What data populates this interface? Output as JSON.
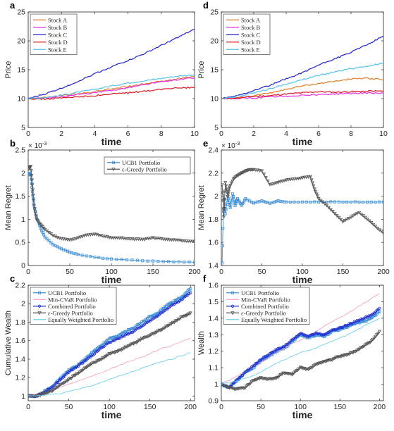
{
  "colors": {
    "stock_a": "#e07b28",
    "stock_b": "#e62ee6",
    "stock_c": "#1f1fd1",
    "stock_d": "#d9141e",
    "stock_e": "#55c3e8",
    "ucb1": "#3d8fd6",
    "egreedy": "#555555",
    "mincvar": "#f5a3c7",
    "combined": "#1f2fcf",
    "equal": "#6ecff2"
  },
  "chart_data": [
    {
      "panel": "a",
      "type": "line",
      "title": "",
      "xlabel": "time",
      "ylabel": "Price",
      "xlim": [
        0,
        10
      ],
      "ylim": [
        5,
        25
      ],
      "xticks": [
        "0",
        "2",
        "4",
        "6",
        "8",
        "10"
      ],
      "yticks": [
        "5",
        "10",
        "15",
        "20",
        "25"
      ],
      "legend": "top-left",
      "series": [
        {
          "name": "Stock A",
          "color_key": "stock_a",
          "x": [
            0,
            1,
            2,
            3,
            4,
            5,
            6,
            7,
            8,
            9,
            10
          ],
          "y": [
            10,
            10.2,
            10.5,
            10.8,
            11.2,
            11.7,
            12.1,
            12.6,
            13.0,
            13.4,
            13.9
          ]
        },
        {
          "name": "Stock B",
          "color_key": "stock_b",
          "x": [
            0,
            1,
            2,
            3,
            4,
            5,
            6,
            7,
            8,
            9,
            10
          ],
          "y": [
            10,
            10.1,
            10.4,
            10.7,
            11.0,
            11.4,
            11.9,
            12.4,
            12.9,
            13.3,
            13.6
          ]
        },
        {
          "name": "Stock C",
          "color_key": "stock_c",
          "x": [
            0,
            1,
            2,
            3,
            4,
            5,
            6,
            7,
            8,
            9,
            10
          ],
          "y": [
            10,
            10.8,
            11.8,
            13.0,
            14.3,
            15.5,
            16.6,
            17.8,
            19.2,
            20.6,
            22.0
          ]
        },
        {
          "name": "Stock D",
          "color_key": "stock_d",
          "x": [
            0,
            1,
            2,
            3,
            4,
            5,
            6,
            7,
            8,
            9,
            10
          ],
          "y": [
            10,
            9.9,
            10.1,
            10.3,
            10.5,
            10.8,
            11.0,
            11.3,
            11.6,
            11.9,
            11.9
          ]
        },
        {
          "name": "Stock E",
          "color_key": "stock_e",
          "x": [
            0,
            1,
            2,
            3,
            4,
            5,
            6,
            7,
            8,
            9,
            10
          ],
          "y": [
            10,
            10.2,
            10.6,
            11.1,
            11.6,
            12.2,
            12.7,
            13.1,
            13.5,
            13.9,
            14.1
          ]
        }
      ]
    },
    {
      "panel": "d",
      "type": "line",
      "title": "",
      "xlabel": "time",
      "ylabel": "Price",
      "xlim": [
        0,
        10
      ],
      "ylim": [
        5,
        25
      ],
      "xticks": [
        "0",
        "2",
        "4",
        "6",
        "8",
        "10"
      ],
      "yticks": [
        "5",
        "10",
        "15",
        "20",
        "25"
      ],
      "legend": "top-left",
      "series": [
        {
          "name": "Stock A",
          "color_key": "stock_a",
          "x": [
            0,
            1,
            2,
            3,
            4,
            5,
            6,
            7,
            8,
            9,
            10
          ],
          "y": [
            10,
            10.1,
            10.5,
            11.0,
            11.6,
            12.2,
            12.6,
            13.0,
            13.4,
            13.5,
            13.3
          ]
        },
        {
          "name": "Stock B",
          "color_key": "stock_b",
          "x": [
            0,
            1,
            2,
            3,
            4,
            5,
            6,
            7,
            8,
            9,
            10
          ],
          "y": [
            10,
            10.0,
            10.1,
            10.3,
            10.4,
            10.6,
            10.7,
            10.8,
            10.9,
            11.0,
            10.9
          ]
        },
        {
          "name": "Stock C",
          "color_key": "stock_c",
          "x": [
            0,
            1,
            2,
            3,
            4,
            5,
            6,
            7,
            8,
            9,
            10
          ],
          "y": [
            10,
            10.5,
            11.4,
            12.3,
            13.4,
            14.5,
            15.8,
            16.9,
            18.0,
            19.4,
            20.8
          ]
        },
        {
          "name": "Stock D",
          "color_key": "stock_d",
          "x": [
            0,
            1,
            2,
            3,
            4,
            5,
            6,
            7,
            8,
            9,
            10
          ],
          "y": [
            10,
            10.1,
            10.4,
            10.5,
            10.8,
            11.0,
            11.2,
            11.1,
            11.2,
            11.3,
            11.3
          ]
        },
        {
          "name": "Stock E",
          "color_key": "stock_e",
          "x": [
            0,
            1,
            2,
            3,
            4,
            5,
            6,
            7,
            8,
            9,
            10
          ],
          "y": [
            10,
            10.4,
            11.0,
            11.7,
            12.5,
            13.3,
            14.0,
            14.6,
            15.2,
            15.6,
            16.2
          ]
        }
      ]
    },
    {
      "panel": "b",
      "type": "line",
      "title": "",
      "xlabel": "time",
      "ylabel": "Mean Regret",
      "xlim": [
        0,
        200
      ],
      "ylim": [
        0,
        2.5
      ],
      "y_exponent": "× 10",
      "y_exponent_power": "-3",
      "xticks": [
        "0",
        "50",
        "100",
        "150",
        "200"
      ],
      "yticks": [
        "0",
        "0.5",
        "1",
        "1.5",
        "2",
        "2.5"
      ],
      "legend": "top-right",
      "series": [
        {
          "name": "UCB1 Portfolio",
          "color_key": "ucb1",
          "marker": "square",
          "x": [
            1,
            3,
            5,
            7,
            10,
            15,
            20,
            30,
            40,
            50,
            60,
            80,
            100,
            125,
            150,
            175,
            200
          ],
          "y": [
            2.0,
            1.95,
            1.6,
            1.3,
            1.05,
            0.8,
            0.62,
            0.45,
            0.36,
            0.29,
            0.24,
            0.18,
            0.14,
            0.115,
            0.095,
            0.08,
            0.07
          ]
        },
        {
          "name": "ε-Greedy Portfolio",
          "color_key": "egreedy",
          "marker": "triangle-down",
          "x": [
            1,
            3,
            5,
            7,
            10,
            15,
            20,
            30,
            40,
            50,
            60,
            70,
            80,
            90,
            100,
            110,
            120,
            130,
            140,
            150,
            160,
            170,
            180,
            190,
            200
          ],
          "y": [
            2.1,
            2.15,
            1.75,
            1.3,
            1.0,
            0.88,
            0.78,
            0.65,
            0.58,
            0.55,
            0.6,
            0.66,
            0.68,
            0.64,
            0.6,
            0.6,
            0.58,
            0.57,
            0.57,
            0.6,
            0.58,
            0.56,
            0.55,
            0.53,
            0.52
          ]
        }
      ]
    },
    {
      "panel": "e",
      "type": "line",
      "title": "",
      "xlabel": "time",
      "ylabel": "Mean Regret",
      "xlim": [
        0,
        200
      ],
      "ylim": [
        1.4,
        2.4
      ],
      "y_exponent": "× 10",
      "y_exponent_power": "-3",
      "xticks": [
        "0",
        "50",
        "100",
        "150",
        "200"
      ],
      "yticks": [
        "1.4",
        "1.6",
        "1.8",
        "2",
        "2.2",
        "2.4"
      ],
      "legend": "none",
      "series": [
        {
          "name": "UCB1 Portfolio",
          "color_key": "ucb1",
          "marker": "square",
          "x": [
            1,
            3,
            5,
            8,
            11,
            14,
            17,
            20,
            25,
            30,
            40,
            50,
            60,
            70,
            80,
            100,
            120,
            140,
            160,
            180,
            200
          ],
          "y": [
            1.42,
            2.02,
            1.85,
            2.0,
            1.9,
            2.02,
            1.92,
            1.98,
            1.92,
            1.98,
            1.94,
            1.96,
            1.94,
            1.96,
            1.95,
            1.95,
            1.95,
            1.95,
            1.95,
            1.95,
            1.95
          ]
        },
        {
          "name": "ε-Greedy Portfolio",
          "color_key": "egreedy",
          "marker": "triangle-down",
          "x": [
            1,
            3,
            5,
            8,
            10,
            15,
            20,
            25,
            30,
            35,
            40,
            50,
            60,
            70,
            80,
            90,
            100,
            110,
            115,
            120,
            130,
            140,
            150,
            160,
            170,
            180,
            190,
            200
          ],
          "y": [
            2.1,
            1.82,
            2.12,
            2.0,
            2.08,
            2.15,
            2.18,
            2.2,
            2.22,
            2.23,
            2.23,
            2.22,
            2.1,
            2.12,
            2.14,
            2.15,
            2.16,
            2.17,
            2.06,
            1.98,
            1.92,
            1.85,
            1.78,
            1.82,
            1.86,
            1.8,
            1.74,
            1.68
          ]
        }
      ]
    },
    {
      "panel": "c",
      "type": "line",
      "title": "",
      "xlabel": "time",
      "ylabel": "Cumulative Wealth",
      "xlim": [
        0,
        205
      ],
      "ylim": [
        0.95,
        2.2
      ],
      "xticks": [
        "0",
        "50",
        "100",
        "150",
        "200"
      ],
      "yticks": [
        "1",
        "1.2",
        "1.4",
        "1.6",
        "1.8",
        "2",
        "2.2"
      ],
      "legend": "top-left",
      "series": [
        {
          "name": "UCB1 Portfolio",
          "color_key": "ucb1",
          "marker": "square",
          "x": [
            0,
            10,
            20,
            30,
            40,
            50,
            60,
            70,
            80,
            90,
            100,
            110,
            120,
            130,
            140,
            150,
            160,
            170,
            180,
            190,
            200
          ],
          "y": [
            1.0,
            1.0,
            1.05,
            1.1,
            1.2,
            1.28,
            1.33,
            1.4,
            1.48,
            1.55,
            1.62,
            1.65,
            1.7,
            1.74,
            1.8,
            1.86,
            1.9,
            1.98,
            2.03,
            2.08,
            2.16
          ]
        },
        {
          "name": "Min-CVaR Portfolio",
          "color_key": "mincvar",
          "x": [
            0,
            20,
            40,
            60,
            80,
            100,
            120,
            140,
            160,
            180,
            200
          ],
          "y": [
            1.0,
            1.05,
            1.1,
            1.16,
            1.22,
            1.29,
            1.36,
            1.42,
            1.5,
            1.56,
            1.63
          ]
        },
        {
          "name": "Combined Portfolio",
          "color_key": "combined",
          "marker": "circle",
          "x": [
            0,
            10,
            20,
            30,
            40,
            50,
            60,
            70,
            80,
            90,
            100,
            110,
            120,
            130,
            140,
            150,
            160,
            170,
            180,
            190,
            200
          ],
          "y": [
            1.0,
            1.0,
            1.04,
            1.1,
            1.18,
            1.26,
            1.32,
            1.38,
            1.45,
            1.52,
            1.58,
            1.62,
            1.66,
            1.7,
            1.76,
            1.82,
            1.87,
            1.94,
            2.0,
            2.05,
            2.12
          ]
        },
        {
          "name": "ε-Greedy Portfolio",
          "color_key": "egreedy",
          "marker": "triangle-down",
          "x": [
            0,
            10,
            20,
            30,
            40,
            50,
            60,
            70,
            80,
            90,
            100,
            110,
            120,
            130,
            140,
            150,
            160,
            170,
            180,
            190,
            200
          ],
          "y": [
            1.0,
            1.0,
            1.03,
            1.06,
            1.12,
            1.18,
            1.24,
            1.3,
            1.36,
            1.4,
            1.46,
            1.48,
            1.53,
            1.57,
            1.62,
            1.66,
            1.7,
            1.75,
            1.8,
            1.86,
            1.9
          ]
        },
        {
          "name": "Equally Weighted Portfolio",
          "color_key": "equal",
          "x": [
            0,
            20,
            40,
            60,
            80,
            100,
            120,
            140,
            160,
            180,
            200
          ],
          "y": [
            1.0,
            1.01,
            1.03,
            1.07,
            1.12,
            1.18,
            1.24,
            1.3,
            1.36,
            1.41,
            1.47
          ]
        }
      ]
    },
    {
      "panel": "f",
      "type": "line",
      "title": "",
      "xlabel": "time",
      "ylabel": "Wealth",
      "xlim": [
        0,
        205
      ],
      "ylim": [
        0.9,
        1.6
      ],
      "xticks": [
        "0",
        "50",
        "100",
        "150",
        "200"
      ],
      "yticks": [
        "0.9",
        "1",
        "1.1",
        "1.2",
        "1.3",
        "1.4",
        "1.5",
        "1.6"
      ],
      "legend": "top-left",
      "series": [
        {
          "name": "UCB1 Portfolio",
          "color_key": "ucb1",
          "marker": "square",
          "x": [
            0,
            10,
            20,
            30,
            40,
            50,
            60,
            70,
            80,
            90,
            100,
            110,
            120,
            130,
            140,
            150,
            160,
            170,
            180,
            190,
            200
          ],
          "y": [
            1.0,
            0.98,
            1.02,
            1.07,
            1.1,
            1.14,
            1.17,
            1.2,
            1.22,
            1.26,
            1.3,
            1.28,
            1.3,
            1.29,
            1.32,
            1.33,
            1.35,
            1.37,
            1.38,
            1.4,
            1.44
          ]
        },
        {
          "name": "Min-CVaR Portfolio",
          "color_key": "mincvar",
          "x": [
            0,
            20,
            40,
            60,
            80,
            100,
            120,
            140,
            160,
            180,
            200
          ],
          "y": [
            1.0,
            1.05,
            1.1,
            1.16,
            1.22,
            1.27,
            1.32,
            1.38,
            1.43,
            1.49,
            1.55
          ]
        },
        {
          "name": "Combined Portfolio",
          "color_key": "combined",
          "marker": "circle",
          "x": [
            0,
            10,
            20,
            30,
            40,
            50,
            60,
            70,
            80,
            90,
            100,
            110,
            120,
            130,
            140,
            150,
            160,
            170,
            180,
            190,
            200
          ],
          "y": [
            1.0,
            0.98,
            1.03,
            1.07,
            1.11,
            1.15,
            1.18,
            1.21,
            1.23,
            1.27,
            1.31,
            1.29,
            1.31,
            1.3,
            1.33,
            1.34,
            1.36,
            1.38,
            1.4,
            1.42,
            1.46
          ]
        },
        {
          "name": "ε-Greedy Portfolio",
          "color_key": "egreedy",
          "marker": "triangle-down",
          "x": [
            0,
            10,
            20,
            30,
            40,
            50,
            60,
            70,
            80,
            90,
            100,
            110,
            120,
            130,
            140,
            150,
            160,
            170,
            180,
            190,
            200
          ],
          "y": [
            1.0,
            0.98,
            0.97,
            0.98,
            1.02,
            1.04,
            1.03,
            1.04,
            1.07,
            1.06,
            1.1,
            1.09,
            1.12,
            1.14,
            1.15,
            1.17,
            1.18,
            1.2,
            1.23,
            1.26,
            1.32
          ]
        },
        {
          "name": "Equally Weighted Portfolio",
          "color_key": "equal",
          "x": [
            0,
            20,
            40,
            60,
            80,
            100,
            120,
            140,
            160,
            180,
            200
          ],
          "y": [
            1.0,
            1.02,
            1.05,
            1.1,
            1.15,
            1.19,
            1.22,
            1.26,
            1.3,
            1.35,
            1.4
          ]
        }
      ]
    }
  ]
}
